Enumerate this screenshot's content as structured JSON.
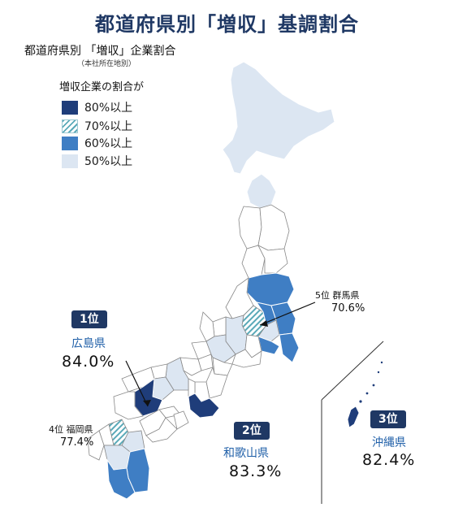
{
  "title": "都道府県別「増収」基調割合",
  "subtitle": "都道府県別 「増収」企業割合",
  "subnote": "（本社所在地別）",
  "legend": {
    "title": "増収企業の割合が",
    "items": [
      {
        "label": "80%以上",
        "color": "#1f3d7a"
      },
      {
        "label": "70%以上",
        "color": "#5aa9b8"
      },
      {
        "label": "60%以上",
        "color": "#3f7ec4"
      },
      {
        "label": "50%以上",
        "color": "#dce6f2"
      }
    ]
  },
  "rankings": {
    "r1": {
      "badge": "1位",
      "pref": "広島県",
      "value": "84.0%"
    },
    "r2": {
      "badge": "2位",
      "pref": "和歌山県",
      "value": "83.3%"
    },
    "r3": {
      "badge": "3位",
      "pref": "沖縄県",
      "value": "82.4%"
    },
    "r4": {
      "rank_pref": "4位 福岡県",
      "value": "77.4%"
    },
    "r5": {
      "rank_pref": "5位 群馬県",
      "value": "70.6%"
    }
  }
}
